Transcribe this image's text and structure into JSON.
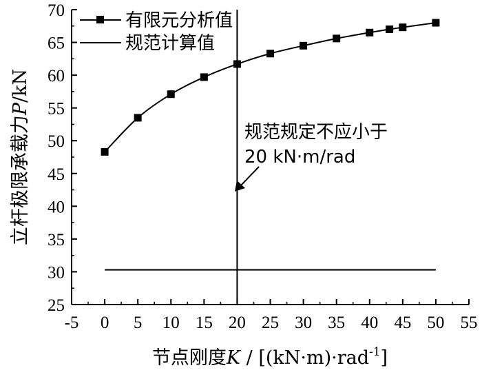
{
  "chart_data": {
    "type": "line",
    "xlabel_main": "节点刚度",
    "xlabel_var": "K",
    "xlabel_unit_pre": " / [(kN·m)·rad",
    "xlabel_unit_sup": "-1",
    "xlabel_unit_post": "]",
    "ylabel_main": "立杆极限承载力",
    "ylabel_var": "P",
    "ylabel_unit": "/kN",
    "xlim": [
      -5,
      55
    ],
    "ylim": [
      25,
      70
    ],
    "xticks": [
      -5,
      0,
      5,
      10,
      15,
      20,
      25,
      30,
      35,
      40,
      45,
      50,
      55
    ],
    "yticks": [
      25,
      30,
      35,
      40,
      45,
      50,
      55,
      60,
      65,
      70
    ],
    "series": [
      {
        "name": "有限元分析值",
        "marker": "square",
        "x": [
          0,
          5,
          10,
          15,
          20,
          25,
          30,
          35,
          40,
          43,
          45,
          50
        ],
        "y": [
          48.3,
          53.5,
          57.1,
          59.7,
          61.7,
          63.3,
          64.5,
          65.6,
          66.5,
          67.0,
          67.3,
          68.0
        ]
      },
      {
        "name": "规范计算值",
        "marker": "none",
        "x": [
          0,
          50
        ],
        "y": [
          30.3,
          30.3
        ]
      }
    ],
    "vline_x": 20,
    "annotation": {
      "line1": "规范规定不应小于",
      "line2": "20 kN·m/rad",
      "arrow_to": [
        20,
        42.5
      ]
    },
    "legend_position": "top-left",
    "grid": false
  }
}
